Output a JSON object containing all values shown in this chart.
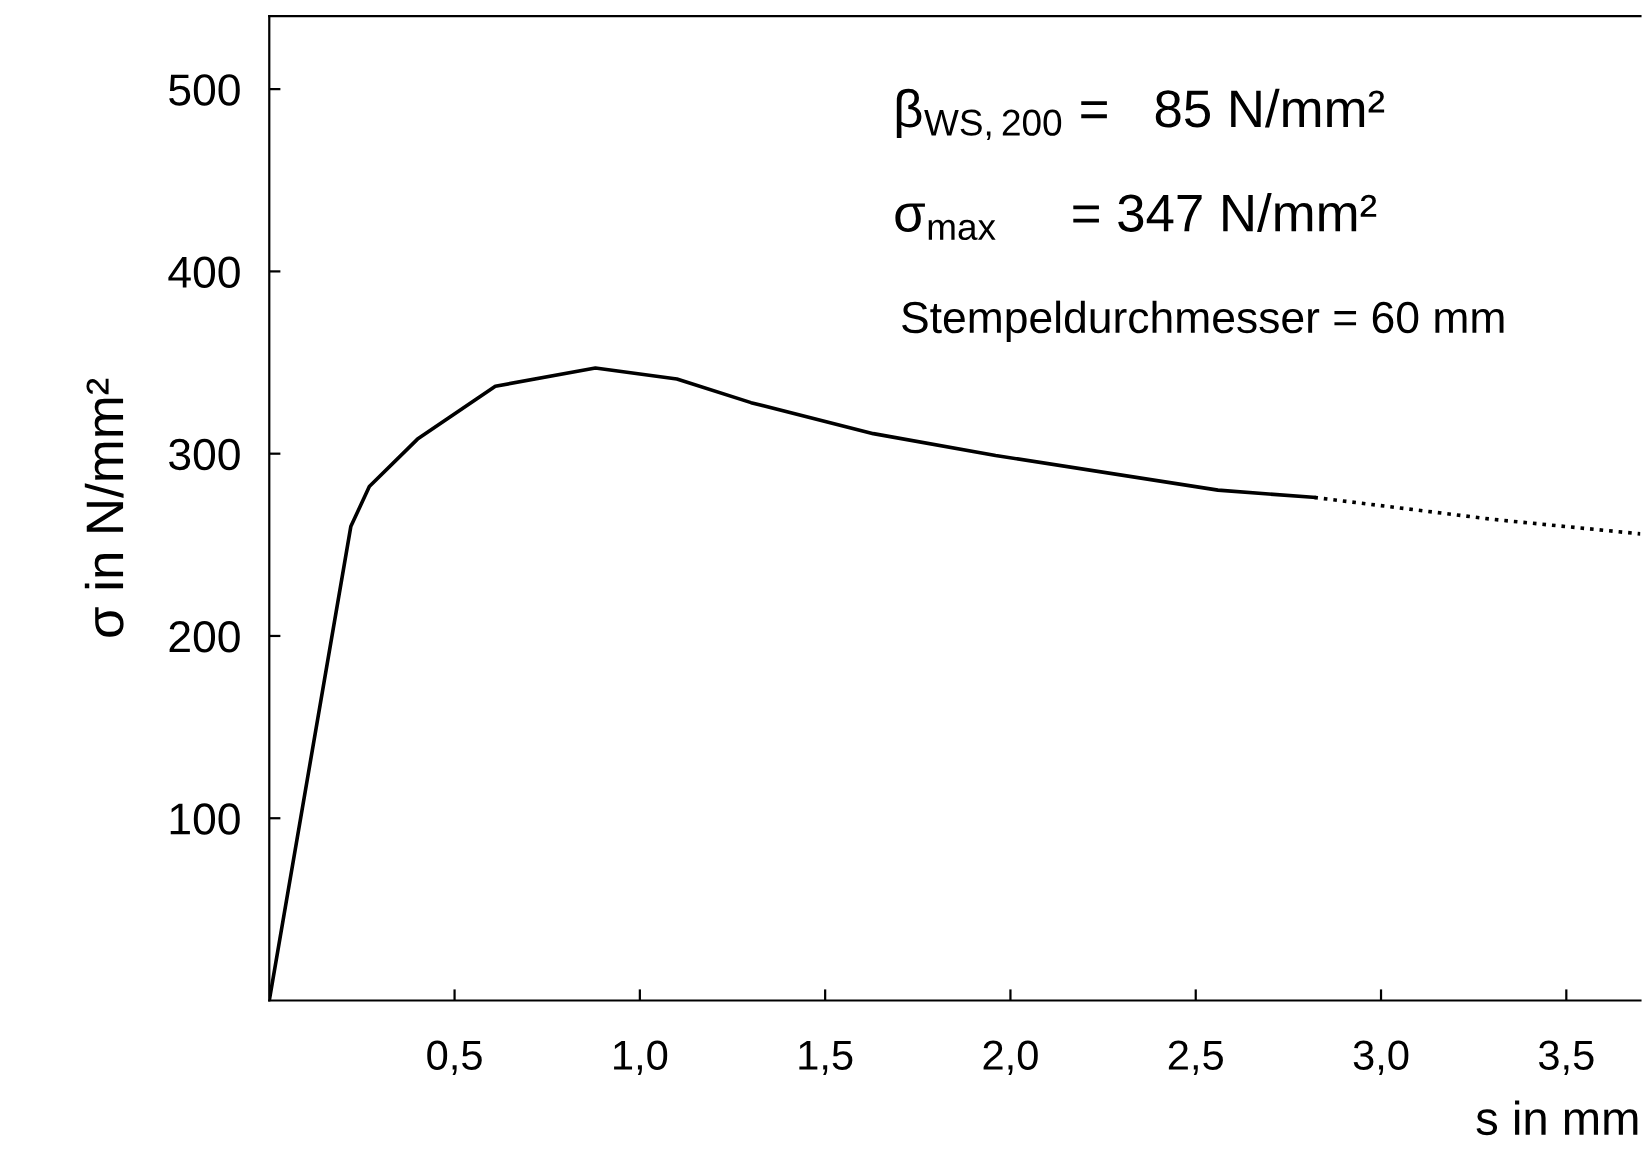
{
  "chart_data": {
    "type": "line",
    "xlabel": "s in mm",
    "ylabel": "σ in N/mm²",
    "xlim": [
      0,
      3.7
    ],
    "ylim": [
      0,
      540
    ],
    "xticks": [
      {
        "value": 0.5,
        "label": "0,5"
      },
      {
        "value": 1.0,
        "label": "1,0"
      },
      {
        "value": 1.5,
        "label": "1,5"
      },
      {
        "value": 2.0,
        "label": "2,0"
      },
      {
        "value": 2.5,
        "label": "2,5"
      },
      {
        "value": 3.0,
        "label": "3,0"
      },
      {
        "value": 3.5,
        "label": "3,5"
      }
    ],
    "yticks": [
      100,
      200,
      300,
      400,
      500
    ],
    "grid": false,
    "series": [
      {
        "color": "#000000",
        "line_style": "solid",
        "x": [
          0,
          0.22,
          0.27,
          0.4,
          0.61,
          0.88,
          1.1,
          1.3,
          1.63,
          1.96,
          2.56,
          2.82
        ],
        "values": [
          0,
          260,
          282,
          308,
          337,
          347,
          341,
          328,
          311,
          299,
          280,
          276
        ]
      },
      {
        "color": "#000000",
        "line_style": "dotted",
        "x": [
          2.82,
          3.3,
          3.7
        ],
        "values": [
          276,
          264,
          256
        ]
      }
    ],
    "annotations": [
      "β$_{WS,200}$ =   85 N/mm²",
      "σ$_{max}$     = 347 N/mm²",
      "Stempeldurchmesser = 60 mm"
    ]
  }
}
